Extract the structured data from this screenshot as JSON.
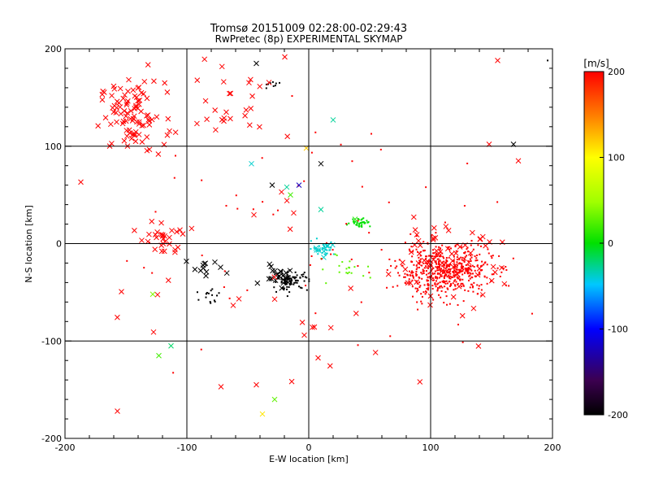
{
  "chart_data": {
    "type": "scatter",
    "title": "Tromsø 20151009 02:28:00-02:29:43",
    "subtitle": "RwPretec (8p) EXPERIMENTAL SKYMAP",
    "xlabel": "E-W location [km]",
    "ylabel": "N-S location [km]",
    "xlim": [
      -200,
      200
    ],
    "ylim": [
      -200,
      200
    ],
    "x_ticks": [
      "-200",
      "-100",
      "0",
      "100",
      "200"
    ],
    "y_ticks": [
      "-200",
      "-100",
      "0",
      "100",
      "200"
    ],
    "grid": true,
    "colorbar": {
      "label": "[m/s]",
      "range": [
        -200,
        200
      ],
      "ticks": [
        "200",
        "100",
        "0",
        "-100",
        "-200"
      ]
    },
    "clusters": [
      {
        "marker": "x",
        "velocity": 200,
        "center": [
          -145,
          130
        ],
        "spread": [
          22,
          30
        ],
        "count": 95
      },
      {
        "marker": "x",
        "velocity": 200,
        "center": [
          -120,
          5
        ],
        "spread": [
          15,
          15
        ],
        "count": 30
      },
      {
        "marker": "dot",
        "velocity": 200,
        "center": [
          112,
          -28
        ],
        "spread": [
          32,
          22
        ],
        "count": 520
      },
      {
        "marker": "x",
        "velocity": 200,
        "center": [
          110,
          -20
        ],
        "spread": [
          40,
          30
        ],
        "count": 65
      },
      {
        "marker": "dot",
        "velocity": -200,
        "center": [
          -15,
          -38
        ],
        "spread": [
          12,
          8
        ],
        "count": 90
      },
      {
        "marker": "x",
        "velocity": -200,
        "center": [
          -25,
          -30
        ],
        "spread": [
          12,
          10
        ],
        "count": 22
      },
      {
        "marker": "dot",
        "velocity": -200,
        "center": [
          -30,
          162
        ],
        "spread": [
          8,
          5
        ],
        "count": 9
      },
      {
        "marker": "dot",
        "velocity": -200,
        "center": [
          -80,
          -55
        ],
        "spread": [
          10,
          10
        ],
        "count": 16
      },
      {
        "marker": "x",
        "velocity": -200,
        "center": [
          -80,
          -25
        ],
        "spread": [
          20,
          12
        ],
        "count": 12
      },
      {
        "marker": "dot",
        "velocity": 0,
        "center": [
          42,
          22
        ],
        "spread": [
          7,
          4
        ],
        "count": 35
      },
      {
        "marker": "dot",
        "velocity": -40,
        "center": [
          12,
          -5
        ],
        "spread": [
          8,
          6
        ],
        "count": 30
      },
      {
        "marker": "x",
        "velocity": -40,
        "center": [
          12,
          -4
        ],
        "spread": [
          6,
          5
        ],
        "count": 8
      },
      {
        "marker": "dot",
        "velocity": 30,
        "center": [
          30,
          -25
        ],
        "spread": [
          20,
          15
        ],
        "count": 20
      },
      {
        "marker": "x",
        "velocity": 200,
        "center": [
          -60,
          150
        ],
        "spread": [
          50,
          40
        ],
        "count": 30
      },
      {
        "marker": "x",
        "velocity": 200,
        "center": [
          0,
          -50
        ],
        "spread": [
          150,
          120
        ],
        "count": 35
      },
      {
        "marker": "dot",
        "velocity": 200,
        "center": [
          0,
          0
        ],
        "spread": [
          140,
          120
        ],
        "count": 60
      }
    ],
    "highlighted_points": [
      {
        "x": -43,
        "y": 185,
        "velocity": -200,
        "marker": "x"
      },
      {
        "x": 20,
        "y": 127,
        "velocity": -30,
        "marker": "x"
      },
      {
        "x": -30,
        "y": 60,
        "velocity": -200,
        "marker": "x"
      },
      {
        "x": -18,
        "y": 58,
        "velocity": -30,
        "marker": "x"
      },
      {
        "x": -8,
        "y": 60,
        "velocity": -120,
        "marker": "x"
      },
      {
        "x": 10,
        "y": 82,
        "velocity": -200,
        "marker": "x"
      },
      {
        "x": -47,
        "y": 82,
        "velocity": -40,
        "marker": "x"
      },
      {
        "x": -15,
        "y": 50,
        "velocity": 20,
        "marker": "x"
      },
      {
        "x": -128,
        "y": -52,
        "velocity": 40,
        "marker": "x"
      },
      {
        "x": -123,
        "y": -115,
        "velocity": 20,
        "marker": "x"
      },
      {
        "x": -113,
        "y": -105,
        "velocity": -20,
        "marker": "x"
      },
      {
        "x": -28,
        "y": -160,
        "velocity": 30,
        "marker": "x"
      },
      {
        "x": -38,
        "y": -175,
        "velocity": 110,
        "marker": "x"
      },
      {
        "x": -43,
        "y": -145,
        "velocity": 200,
        "marker": "x"
      },
      {
        "x": -157,
        "y": -172,
        "velocity": 200,
        "marker": "x"
      },
      {
        "x": -72,
        "y": -147,
        "velocity": 200,
        "marker": "x"
      },
      {
        "x": 155,
        "y": 188,
        "velocity": 200,
        "marker": "x"
      },
      {
        "x": 148,
        "y": 102,
        "velocity": 200,
        "marker": "x"
      },
      {
        "x": 168,
        "y": 102,
        "velocity": -200,
        "marker": "x"
      },
      {
        "x": 172,
        "y": 85,
        "velocity": 200,
        "marker": "x"
      },
      {
        "x": 196,
        "y": 188,
        "velocity": -200,
        "marker": "dot"
      },
      {
        "x": -2,
        "y": 98,
        "velocity": 120,
        "marker": "x"
      },
      {
        "x": 38,
        "y": 25,
        "velocity": 10,
        "marker": "x"
      },
      {
        "x": 10,
        "y": 35,
        "velocity": -30,
        "marker": "x"
      }
    ]
  }
}
